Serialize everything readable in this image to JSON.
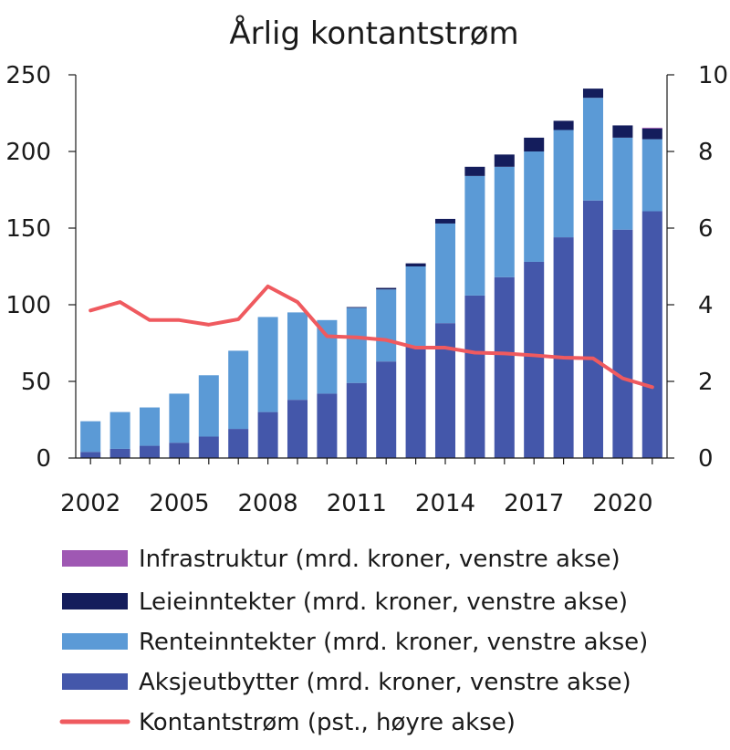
{
  "chart_data": {
    "type": "bar",
    "stacked": true,
    "title": "Årlig kontantstrøm",
    "x": [
      2002,
      2003,
      2004,
      2005,
      2006,
      2007,
      2008,
      2009,
      2010,
      2011,
      2012,
      2013,
      2014,
      2015,
      2016,
      2017,
      2018,
      2019,
      2020,
      2021
    ],
    "x_tick_labels": [
      "2002",
      "2005",
      "2008",
      "2011",
      "2014",
      "2017",
      "2020"
    ],
    "y_left": {
      "ylim": [
        0,
        250
      ],
      "ticks": [
        "0",
        "50",
        "100",
        "150",
        "200",
        "250"
      ]
    },
    "y_right": {
      "ylim": [
        0,
        10
      ],
      "ticks": [
        "0",
        "2",
        "4",
        "6",
        "8",
        "10"
      ]
    },
    "series": [
      {
        "name": "Aksjeutbytter (mrd. kroner, venstre akse)",
        "axis": "left",
        "kind": "bar",
        "color": "#4457aa",
        "values": [
          4,
          6,
          8,
          10,
          14,
          19,
          30,
          38,
          42,
          49,
          63,
          73,
          88,
          106,
          118,
          128,
          144,
          168,
          149,
          161
        ]
      },
      {
        "name": "Renteinntekter (mrd. kroner, venstre akse)",
        "axis": "left",
        "kind": "bar",
        "color": "#5b9ad6",
        "values": [
          20,
          24,
          25,
          32,
          40,
          51,
          62,
          57,
          48,
          49,
          47,
          52,
          65,
          78,
          72,
          72,
          70,
          67,
          60,
          47
        ]
      },
      {
        "name": "Leieinntekter (mrd. kroner, venstre akse)",
        "axis": "left",
        "kind": "bar",
        "color": "#141d5c",
        "values": [
          0,
          0,
          0,
          0,
          0,
          0,
          0,
          0,
          0,
          0.5,
          1,
          2,
          3,
          6,
          8,
          9,
          6,
          6,
          8,
          7
        ]
      },
      {
        "name": "Infrastruktur (mrd. kroner, venstre akse)",
        "axis": "left",
        "kind": "bar",
        "color": "#9f58b3",
        "values": [
          0,
          0,
          0,
          0,
          0,
          0,
          0,
          0,
          0,
          0,
          0,
          0,
          0,
          0,
          0,
          0,
          0,
          0,
          0,
          0.5
        ]
      },
      {
        "name": "Kontantstrøm (pst., høyre akse)",
        "axis": "right",
        "kind": "line",
        "color": "#ef5a5f",
        "values": [
          3.85,
          4.07,
          3.6,
          3.6,
          3.48,
          3.62,
          4.48,
          4.07,
          3.18,
          3.15,
          3.08,
          2.88,
          2.88,
          2.75,
          2.73,
          2.68,
          2.62,
          2.6,
          2.08,
          1.85
        ]
      }
    ],
    "legend": {
      "placement": "bottom",
      "order": [
        3,
        2,
        1,
        0,
        4
      ]
    },
    "grid": false
  }
}
